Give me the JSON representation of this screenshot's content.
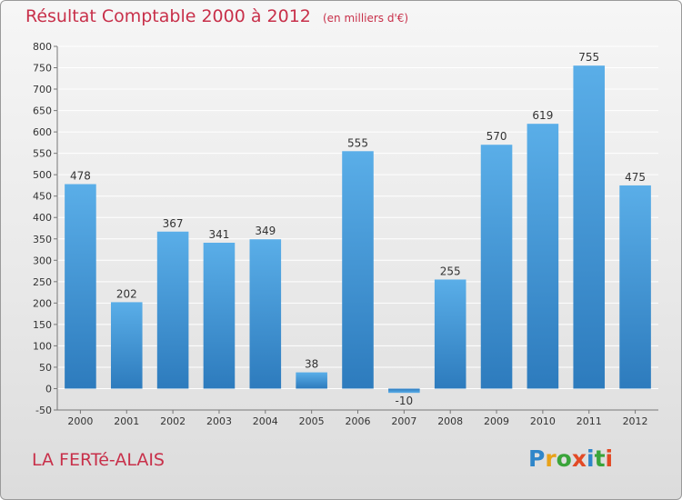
{
  "title": "Résultat Comptable 2000 à 2012",
  "subtitle": "(en milliers d'€)",
  "commune": "LA FERTé-ALAIS",
  "logo": "Proxiti",
  "colors": {
    "title": "#c8304a",
    "bar_top": "#5aaee8",
    "bar_bottom": "#2d7bbd",
    "grid": "#ffffff",
    "axis_text": "#333333",
    "logo": [
      "#2f86c9",
      "#e8a21a",
      "#3aa43a",
      "#e24a25",
      "#2f86c9",
      "#3aa43a",
      "#e24a25"
    ]
  },
  "chart_data": {
    "type": "bar",
    "categories": [
      "2000",
      "2001",
      "2002",
      "2003",
      "2004",
      "2005",
      "2006",
      "2007",
      "2008",
      "2009",
      "2010",
      "2011",
      "2012"
    ],
    "values": [
      478,
      202,
      367,
      341,
      349,
      38,
      555,
      -10,
      255,
      570,
      619,
      755,
      475
    ],
    "ylim": [
      -50,
      800
    ],
    "yticks": [
      -50,
      0,
      50,
      100,
      150,
      200,
      250,
      300,
      350,
      400,
      450,
      500,
      550,
      600,
      650,
      700,
      750,
      800
    ],
    "grid": true,
    "xlabel": "",
    "ylabel": ""
  }
}
